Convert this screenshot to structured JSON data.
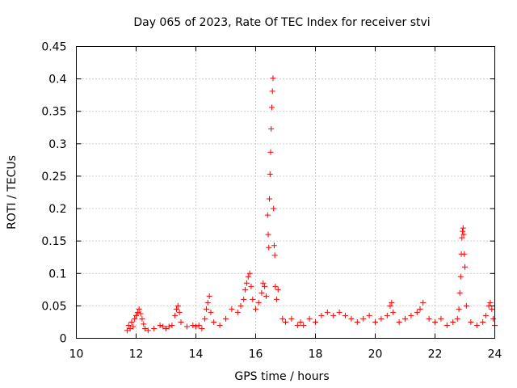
{
  "chart_data": {
    "type": "scatter",
    "title": "Day 065 of 2023, Rate Of TEC Index for receiver stvi",
    "xlabel": "GPS time / hours",
    "ylabel": "ROTI / TECUs",
    "xlim": [
      10,
      24
    ],
    "ylim": [
      0,
      0.45
    ],
    "x_ticks": [
      "10",
      "12",
      "14",
      "16",
      "18",
      "20",
      "22",
      "24"
    ],
    "y_ticks": [
      "0",
      "0.05",
      "0.1",
      "0.15",
      "0.2",
      "0.25",
      "0.3",
      "0.35",
      "0.4",
      "0.45"
    ],
    "grid": true,
    "marker": "+",
    "marker_color": "#ff0000",
    "series": [
      {
        "points": [
          [
            11.7,
            0.012
          ],
          [
            11.75,
            0.02
          ],
          [
            11.8,
            0.015
          ],
          [
            11.85,
            0.025
          ],
          [
            11.9,
            0.018
          ],
          [
            11.95,
            0.03
          ],
          [
            12.0,
            0.035
          ],
          [
            12.05,
            0.04
          ],
          [
            12.1,
            0.045
          ],
          [
            12.15,
            0.038
          ],
          [
            12.2,
            0.03
          ],
          [
            12.25,
            0.022
          ],
          [
            12.3,
            0.015
          ],
          [
            12.4,
            0.012
          ],
          [
            12.6,
            0.015
          ],
          [
            12.8,
            0.02
          ],
          [
            12.9,
            0.018
          ],
          [
            13.0,
            0.015
          ],
          [
            13.1,
            0.018
          ],
          [
            13.2,
            0.02
          ],
          [
            13.3,
            0.035
          ],
          [
            13.35,
            0.045
          ],
          [
            13.4,
            0.05
          ],
          [
            13.45,
            0.04
          ],
          [
            13.5,
            0.025
          ],
          [
            13.7,
            0.018
          ],
          [
            13.9,
            0.02
          ],
          [
            14.0,
            0.018
          ],
          [
            14.1,
            0.02
          ],
          [
            14.2,
            0.015
          ],
          [
            14.3,
            0.03
          ],
          [
            14.35,
            0.045
          ],
          [
            14.4,
            0.055
          ],
          [
            14.45,
            0.065
          ],
          [
            14.5,
            0.04
          ],
          [
            14.6,
            0.025
          ],
          [
            14.8,
            0.02
          ],
          [
            15.0,
            0.03
          ],
          [
            15.2,
            0.045
          ],
          [
            15.4,
            0.04
          ],
          [
            15.5,
            0.05
          ],
          [
            15.6,
            0.06
          ],
          [
            15.65,
            0.075
          ],
          [
            15.7,
            0.085
          ],
          [
            15.75,
            0.095
          ],
          [
            15.8,
            0.1
          ],
          [
            15.85,
            0.08
          ],
          [
            15.9,
            0.06
          ],
          [
            16.0,
            0.045
          ],
          [
            16.1,
            0.055
          ],
          [
            16.2,
            0.07
          ],
          [
            16.25,
            0.085
          ],
          [
            16.3,
            0.08
          ],
          [
            16.35,
            0.065
          ],
          [
            16.4,
            0.19
          ],
          [
            16.42,
            0.16
          ],
          [
            16.44,
            0.14
          ],
          [
            16.46,
            0.215
          ],
          [
            16.48,
            0.253
          ],
          [
            16.5,
            0.287
          ],
          [
            16.52,
            0.323
          ],
          [
            16.54,
            0.356
          ],
          [
            16.56,
            0.381
          ],
          [
            16.58,
            0.401
          ],
          [
            16.6,
            0.2
          ],
          [
            16.62,
            0.143
          ],
          [
            16.64,
            0.128
          ],
          [
            16.66,
            0.08
          ],
          [
            16.7,
            0.06
          ],
          [
            16.75,
            0.075
          ],
          [
            16.9,
            0.03
          ],
          [
            17.0,
            0.025
          ],
          [
            17.2,
            0.03
          ],
          [
            17.4,
            0.02
          ],
          [
            17.5,
            0.025
          ],
          [
            17.6,
            0.02
          ],
          [
            17.8,
            0.03
          ],
          [
            18.0,
            0.025
          ],
          [
            18.2,
            0.035
          ],
          [
            18.4,
            0.04
          ],
          [
            18.6,
            0.035
          ],
          [
            18.8,
            0.04
          ],
          [
            19.0,
            0.035
          ],
          [
            19.2,
            0.03
          ],
          [
            19.4,
            0.025
          ],
          [
            19.6,
            0.03
          ],
          [
            19.8,
            0.035
          ],
          [
            20.0,
            0.025
          ],
          [
            20.2,
            0.03
          ],
          [
            20.4,
            0.035
          ],
          [
            20.5,
            0.05
          ],
          [
            20.55,
            0.055
          ],
          [
            20.6,
            0.04
          ],
          [
            20.8,
            0.025
          ],
          [
            21.0,
            0.03
          ],
          [
            21.2,
            0.035
          ],
          [
            21.4,
            0.04
          ],
          [
            21.5,
            0.045
          ],
          [
            21.6,
            0.055
          ],
          [
            21.8,
            0.03
          ],
          [
            22.0,
            0.025
          ],
          [
            22.2,
            0.03
          ],
          [
            22.4,
            0.02
          ],
          [
            22.6,
            0.025
          ],
          [
            22.75,
            0.03
          ],
          [
            22.8,
            0.045
          ],
          [
            22.83,
            0.07
          ],
          [
            22.86,
            0.095
          ],
          [
            22.88,
            0.13
          ],
          [
            22.9,
            0.155
          ],
          [
            22.92,
            0.165
          ],
          [
            22.94,
            0.17
          ],
          [
            22.96,
            0.16
          ],
          [
            22.98,
            0.13
          ],
          [
            23.0,
            0.11
          ],
          [
            23.05,
            0.05
          ],
          [
            23.2,
            0.025
          ],
          [
            23.4,
            0.02
          ],
          [
            23.6,
            0.025
          ],
          [
            23.7,
            0.035
          ],
          [
            23.8,
            0.05
          ],
          [
            23.85,
            0.055
          ],
          [
            23.9,
            0.045
          ],
          [
            23.95,
            0.03
          ],
          [
            24.0,
            0.02
          ]
        ]
      }
    ]
  }
}
